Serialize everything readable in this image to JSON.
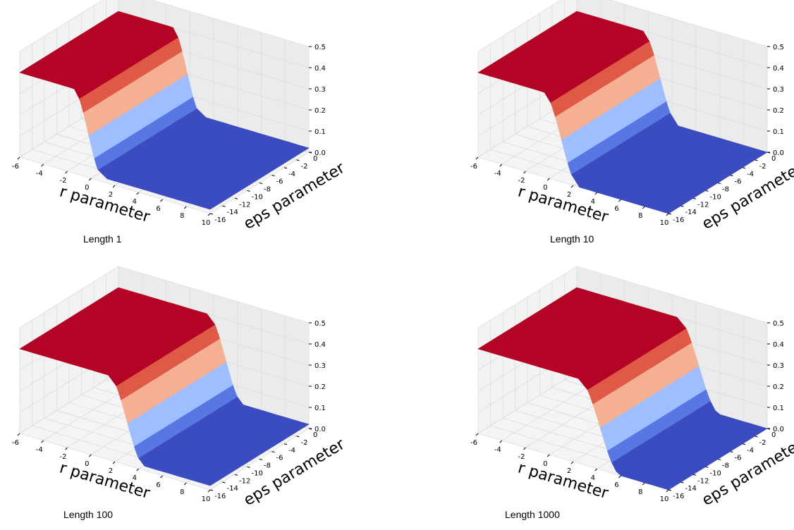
{
  "chart_data": [
    {
      "type": "surface",
      "caption": "Length 1",
      "xlabel": "r parameter",
      "ylabel": "eps parameter",
      "xticks": [
        "-6",
        "-4",
        "-2",
        "0",
        "2",
        "4",
        "6",
        "8",
        "10"
      ],
      "yticks": [
        "-16",
        "-14",
        "-12",
        "-10",
        "-8",
        "-6",
        "-4",
        "-2",
        "0"
      ],
      "zticks": [
        "0.0",
        "0.1",
        "0.2",
        "0.3",
        "0.4",
        "0.5"
      ],
      "xlim": [
        -6,
        10
      ],
      "ylim": [
        -16,
        0
      ],
      "zlim": [
        0,
        0.5
      ],
      "colormap": "coolwarm",
      "surface": {
        "plateau": 0.4,
        "transition_r_start": -1.5,
        "transition_r_end": 1.0,
        "low_value": 0.02
      }
    },
    {
      "type": "surface",
      "caption": "Length 10",
      "xlabel": "r parameter",
      "ylabel": "eps parameter",
      "xticks": [
        "-6",
        "-4",
        "-2",
        "0",
        "2",
        "4",
        "6",
        "8",
        "10"
      ],
      "yticks": [
        "-16",
        "-14",
        "-12",
        "-10",
        "-8",
        "-6",
        "-4",
        "-2",
        "0"
      ],
      "zticks": [
        "0.0",
        "0.1",
        "0.2",
        "0.3",
        "0.4",
        "0.5"
      ],
      "xlim": [
        -6,
        10
      ],
      "ylim": [
        -16,
        0
      ],
      "zlim": [
        0,
        0.5
      ],
      "colormap": "coolwarm",
      "surface": {
        "plateau": 0.4,
        "transition_r_start": -0.5,
        "transition_r_end": 2.5,
        "low_value": 0.0
      }
    },
    {
      "type": "surface",
      "caption": "Length 100",
      "xlabel": "r parameter",
      "ylabel": "eps parameter",
      "xticks": [
        "-6",
        "-4",
        "-2",
        "0",
        "2",
        "4",
        "6",
        "8",
        "10"
      ],
      "yticks": [
        "-16",
        "-14",
        "-12",
        "-10",
        "-8",
        "-6",
        "-4",
        "-2",
        "0"
      ],
      "zticks": [
        "0.0",
        "0.1",
        "0.2",
        "0.3",
        "0.4",
        "0.5"
      ],
      "xlim": [
        -6,
        10
      ],
      "ylim": [
        -16,
        0
      ],
      "zlim": [
        0,
        0.5
      ],
      "colormap": "coolwarm",
      "surface": {
        "plateau": 0.4,
        "transition_r_start": 1.5,
        "transition_r_end": 4.5,
        "low_value": 0.02
      }
    },
    {
      "type": "surface",
      "caption": "Length 1000",
      "xlabel": "r parameter",
      "ylabel": "eps parameter",
      "xticks": [
        "-6",
        "-4",
        "-2",
        "0",
        "2",
        "4",
        "6",
        "8",
        "10"
      ],
      "yticks": [
        "-16",
        "-14",
        "-12",
        "-10",
        "-8",
        "-6",
        "-4",
        "-2",
        "0"
      ],
      "zticks": [
        "0.0",
        "0.1",
        "0.2",
        "0.3",
        "0.4",
        "0.5"
      ],
      "xlim": [
        -6,
        10
      ],
      "ylim": [
        -16,
        0
      ],
      "zlim": [
        0,
        0.5
      ],
      "colormap": "coolwarm",
      "surface": {
        "plateau": 0.4,
        "transition_r_start": 2.5,
        "transition_r_end": 6.0,
        "low_value": 0.0
      }
    }
  ],
  "colors": {
    "band_0": "#3b4cc0",
    "band_1": "#5977e3",
    "band_2": "#9ebeff",
    "band_3": "#f5b093",
    "band_4": "#de5a47",
    "band_5": "#b40426",
    "pane": "#f2f2f2",
    "grid": "#dcdcdc"
  }
}
